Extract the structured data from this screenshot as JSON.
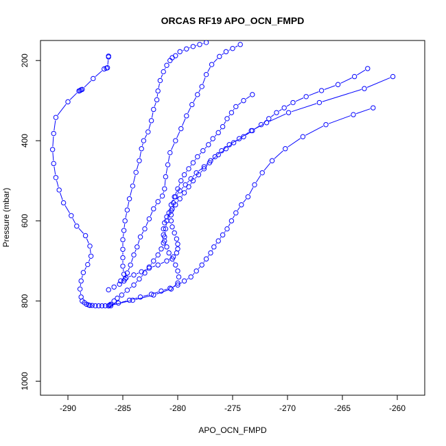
{
  "chart_data": {
    "type": "scatter",
    "title": "ORCAS RF19 APO_OCN_FMPD",
    "xlabel": "APO_OCN_FMPD",
    "ylabel": "Pressure (mbar)",
    "xlim": [
      -292.5,
      -257.5
    ],
    "ylim": [
      1035,
      150
    ],
    "y_inverted": true,
    "x_ticks": [
      -290,
      -285,
      -280,
      -275,
      -270,
      -265,
      -260
    ],
    "y_ticks": [
      200,
      400,
      600,
      800,
      1000
    ],
    "grid": false,
    "legend": "none",
    "series_color": "#0000FF",
    "series": [
      {
        "x": [
          -286.3,
          -286.3,
          -286.4,
          -286.5,
          -286.7,
          -287.7,
          -288.7,
          -288.8,
          -288.9,
          -289.0,
          -290.0,
          -291.1,
          -291.3,
          -291.4,
          -291.3,
          -291.1,
          -290.8,
          -290.4,
          -289.7,
          -289.2,
          -288.4,
          -288.0,
          -287.9,
          -288.2,
          -288.6,
          -288.8,
          -288.9,
          -288.8,
          -288.7,
          -288.5,
          -288.3,
          -288.1,
          -288.0,
          -287.8,
          -287.5,
          -287.2,
          -286.9,
          -286.6,
          -286.3,
          -286.1
        ],
        "y": [
          189,
          191,
          218,
          219,
          221,
          245,
          272,
          273,
          275,
          276,
          303,
          342,
          382,
          422,
          457,
          492,
          523,
          555,
          587,
          613,
          637,
          663,
          688,
          709,
          729,
          750,
          770,
          790,
          800,
          804,
          808,
          810,
          811,
          811,
          812,
          812,
          812,
          812,
          812,
          812
        ]
      },
      {
        "x": [
          -284.8,
          -284.9,
          -285.0,
          -285.0,
          -285.0,
          -285.0,
          -284.9,
          -284.8,
          -284.6,
          -284.4,
          -284.1,
          -283.8,
          -283.5,
          -283.3,
          -283.1,
          -282.7,
          -282.4,
          -282.2,
          -281.9,
          -281.8,
          -281.6,
          -281.3,
          -281.0,
          -280.7,
          -280.5,
          -280.2,
          -279.8,
          -279.2,
          -278.6,
          -278.0,
          -277.4
        ],
        "y": [
          745,
          733,
          713,
          692,
          671,
          647,
          624,
          600,
          573,
          545,
          513,
          479,
          450,
          420,
          400,
          378,
          350,
          322,
          298,
          276,
          250,
          228,
          212,
          200,
          193,
          188,
          178,
          171,
          165,
          160,
          155
        ]
      },
      {
        "x": [
          -286.3,
          -285.8,
          -285.3,
          -284.9,
          -284.6,
          -284.3,
          -284.0,
          -283.7,
          -283.4,
          -283.0,
          -282.6,
          -282.2,
          -281.8,
          -281.4,
          -281.2,
          -281.1,
          -280.9,
          -280.7,
          -280.2,
          -279.7,
          -279.2,
          -278.7,
          -278.2,
          -277.8,
          -277.4,
          -276.9,
          -276.2,
          -275.6,
          -275.0,
          -274.3
        ],
        "y": [
          772,
          765,
          758,
          750,
          730,
          710,
          685,
          665,
          640,
          620,
          595,
          570,
          552,
          538,
          520,
          490,
          460,
          430,
          400,
          370,
          338,
          310,
          285,
          265,
          235,
          210,
          190,
          178,
          170,
          160
        ]
      },
      {
        "x": [
          -286.1,
          -285.8,
          -285.5,
          -285.1,
          -284.6,
          -284.0,
          -283.5,
          -283.0,
          -282.6,
          -282.2,
          -281.8,
          -281.5,
          -281.3,
          -281.2,
          -281.1,
          -281.0,
          -280.8,
          -280.6,
          -280.3,
          -280.0,
          -279.7,
          -279.4,
          -279.0,
          -278.6,
          -278.2,
          -277.7,
          -277.2,
          -276.8,
          -276.3,
          -275.9,
          -275.5,
          -275.1,
          -274.7,
          -274.0,
          -273.2
        ],
        "y": [
          808,
          800,
          793,
          785,
          773,
          760,
          745,
          730,
          715,
          700,
          685,
          670,
          655,
          640,
          620,
          600,
          580,
          560,
          540,
          520,
          500,
          485,
          470,
          455,
          440,
          425,
          410,
          395,
          380,
          365,
          345,
          330,
          315,
          300,
          285
        ]
      },
      {
        "x": [
          -285.2,
          -284.7,
          -284.0,
          -283.3,
          -282.6,
          -281.8,
          -281.0,
          -280.4,
          -280.1,
          -280.0,
          -280.0,
          -280.1,
          -280.3,
          -280.5,
          -280.6,
          -280.6,
          -280.5,
          -280.4,
          -280.2,
          -279.8,
          -279.3,
          -278.8,
          -278.3,
          -277.6,
          -277.0,
          -276.3,
          -275.6,
          -274.9,
          -274.0,
          -273.2,
          -272.4,
          -271.7,
          -271.0,
          -270.3,
          -269.5,
          -268.3,
          -266.9,
          -265.4,
          -263.9,
          -262.7
        ],
        "y": [
          750,
          742,
          735,
          727,
          718,
          710,
          700,
          690,
          680,
          670,
          658,
          645,
          630,
          615,
          600,
          585,
          570,
          555,
          540,
          525,
          510,
          495,
          480,
          465,
          450,
          435,
          420,
          405,
          390,
          375,
          360,
          345,
          330,
          318,
          305,
          290,
          275,
          260,
          240,
          220
        ]
      },
      {
        "x": [
          -286.3,
          -284.1,
          -282.2,
          -280.6,
          -280.0,
          -279.9,
          -280.0,
          -280.2,
          -280.5,
          -280.8,
          -281.0,
          -281.2,
          -281.3,
          -281.3,
          -281.2,
          -281.0,
          -280.6,
          -280.2,
          -279.8,
          -279.4,
          -279.0,
          -278.6,
          -278.1,
          -277.6,
          -277.1,
          -276.6,
          -276.0,
          -275.3,
          -274.4,
          -273.3,
          -271.9,
          -269.9,
          -267.1,
          -263.0,
          -260.4
        ],
        "y": [
          812,
          798,
          785,
          770,
          755,
          740,
          725,
          710,
          695,
          680,
          665,
          650,
          635,
          620,
          605,
          590,
          575,
          560,
          545,
          530,
          515,
          500,
          485,
          470,
          455,
          440,
          425,
          410,
          395,
          375,
          355,
          330,
          305,
          270,
          240
        ]
      },
      {
        "x": [
          -286.2,
          -285.4,
          -284.4,
          -283.4,
          -282.4,
          -281.5,
          -280.7,
          -280.0,
          -279.4,
          -278.8,
          -278.3,
          -277.8,
          -277.4,
          -277.0,
          -276.7,
          -276.3,
          -275.9,
          -275.5,
          -275.1,
          -274.7,
          -274.2,
          -273.6,
          -273.0,
          -272.3,
          -271.4,
          -270.2,
          -268.6,
          -266.5,
          -264.0,
          -262.2
        ],
        "y": [
          810,
          805,
          798,
          790,
          783,
          775,
          768,
          760,
          750,
          740,
          725,
          710,
          695,
          680,
          665,
          650,
          635,
          620,
          600,
          580,
          560,
          540,
          510,
          480,
          450,
          420,
          390,
          360,
          335,
          318
        ]
      }
    ]
  }
}
